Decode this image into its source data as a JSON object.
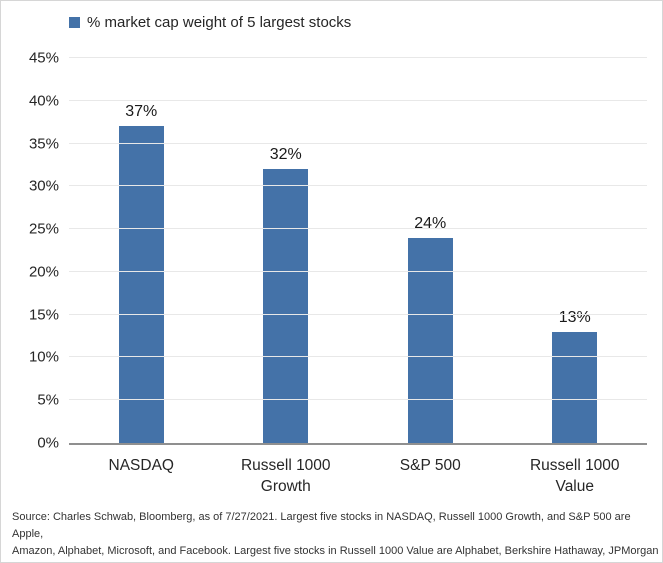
{
  "figure": {
    "background": "#ffffff",
    "border_color": "#d6d6d6"
  },
  "legend": {
    "label": "% market cap weight of 5 largest stocks",
    "swatch_color": "#4472a8"
  },
  "chart_data": {
    "type": "bar",
    "title": "% market cap weight of 5 largest stocks",
    "categories": [
      "NASDAQ",
      "Russell 1000\nGrowth",
      "S&P 500",
      "Russell 1000\nValue"
    ],
    "values": [
      37,
      32,
      24,
      13
    ],
    "value_labels": [
      "37%",
      "32%",
      "24%",
      "13%"
    ],
    "xlabel": "",
    "ylabel": "",
    "ylim": [
      0,
      45
    ],
    "y_tick_labels": [
      "0%",
      "5%",
      "10%",
      "15%",
      "20%",
      "25%",
      "30%",
      "35%",
      "40%",
      "45%"
    ],
    "grid": "horizontal",
    "legend_position": "top-left",
    "bar_color": "#4472a8",
    "gridline_color": "#e8e8e8",
    "axis_line_color": "#8f8f8f"
  },
  "footer": {
    "source_text": "Source: Charles Schwab, Bloomberg, as of 7/27/2021.  Largest five stocks in NASDAQ, Russell 1000 Growth, and S&P 500 are Apple,\nAmazon, Alphabet, Microsoft, and Facebook. Largest five stocks in Russell 1000 Value are Alphabet, Berkshire Hathaway, JPMorgan\nChase, Johnson & Johnson, and Walmart."
  }
}
